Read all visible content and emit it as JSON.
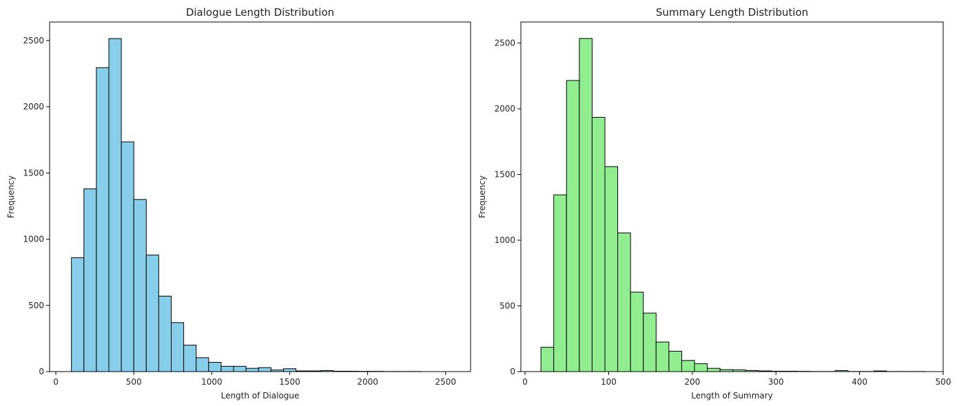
{
  "chart_data": [
    {
      "type": "bar",
      "title": "Dialogue Length Distribution",
      "xlabel": "Length of Dialogue",
      "ylabel": "Frequency",
      "color": "#87CEEB",
      "edgecolor": "#000000",
      "xlim": [
        -40,
        2660
      ],
      "ylim": [
        0,
        2640
      ],
      "xticks": [
        0,
        500,
        1000,
        1500,
        2000,
        2500
      ],
      "yticks": [
        0,
        500,
        1000,
        1500,
        2000,
        2500
      ],
      "bin_start": 100,
      "bin_width": 80,
      "values": [
        860,
        1380,
        2295,
        2515,
        1735,
        1300,
        880,
        570,
        370,
        200,
        105,
        70,
        40,
        40,
        25,
        30,
        12,
        22,
        5,
        5,
        8,
        3,
        3,
        2,
        2,
        1,
        1,
        1
      ]
    },
    {
      "type": "bar",
      "title": "Summary Length Distribution",
      "xlabel": "Length of Summary",
      "ylabel": "Frequency",
      "color": "#90EE90",
      "edgecolor": "#000000",
      "xlim": [
        -5,
        500
      ],
      "ylim": [
        0,
        2660
      ],
      "xticks": [
        0,
        100,
        200,
        300,
        400,
        500
      ],
      "yticks": [
        0,
        500,
        1000,
        1500,
        2000,
        2500
      ],
      "bin_start": 19,
      "bin_width": 15.3,
      "values": [
        185,
        1345,
        2215,
        2535,
        1935,
        1560,
        1055,
        605,
        445,
        225,
        155,
        85,
        60,
        25,
        15,
        13,
        8,
        5,
        3,
        3,
        2,
        1,
        1,
        8,
        1,
        1,
        5,
        1,
        1,
        1
      ]
    }
  ]
}
